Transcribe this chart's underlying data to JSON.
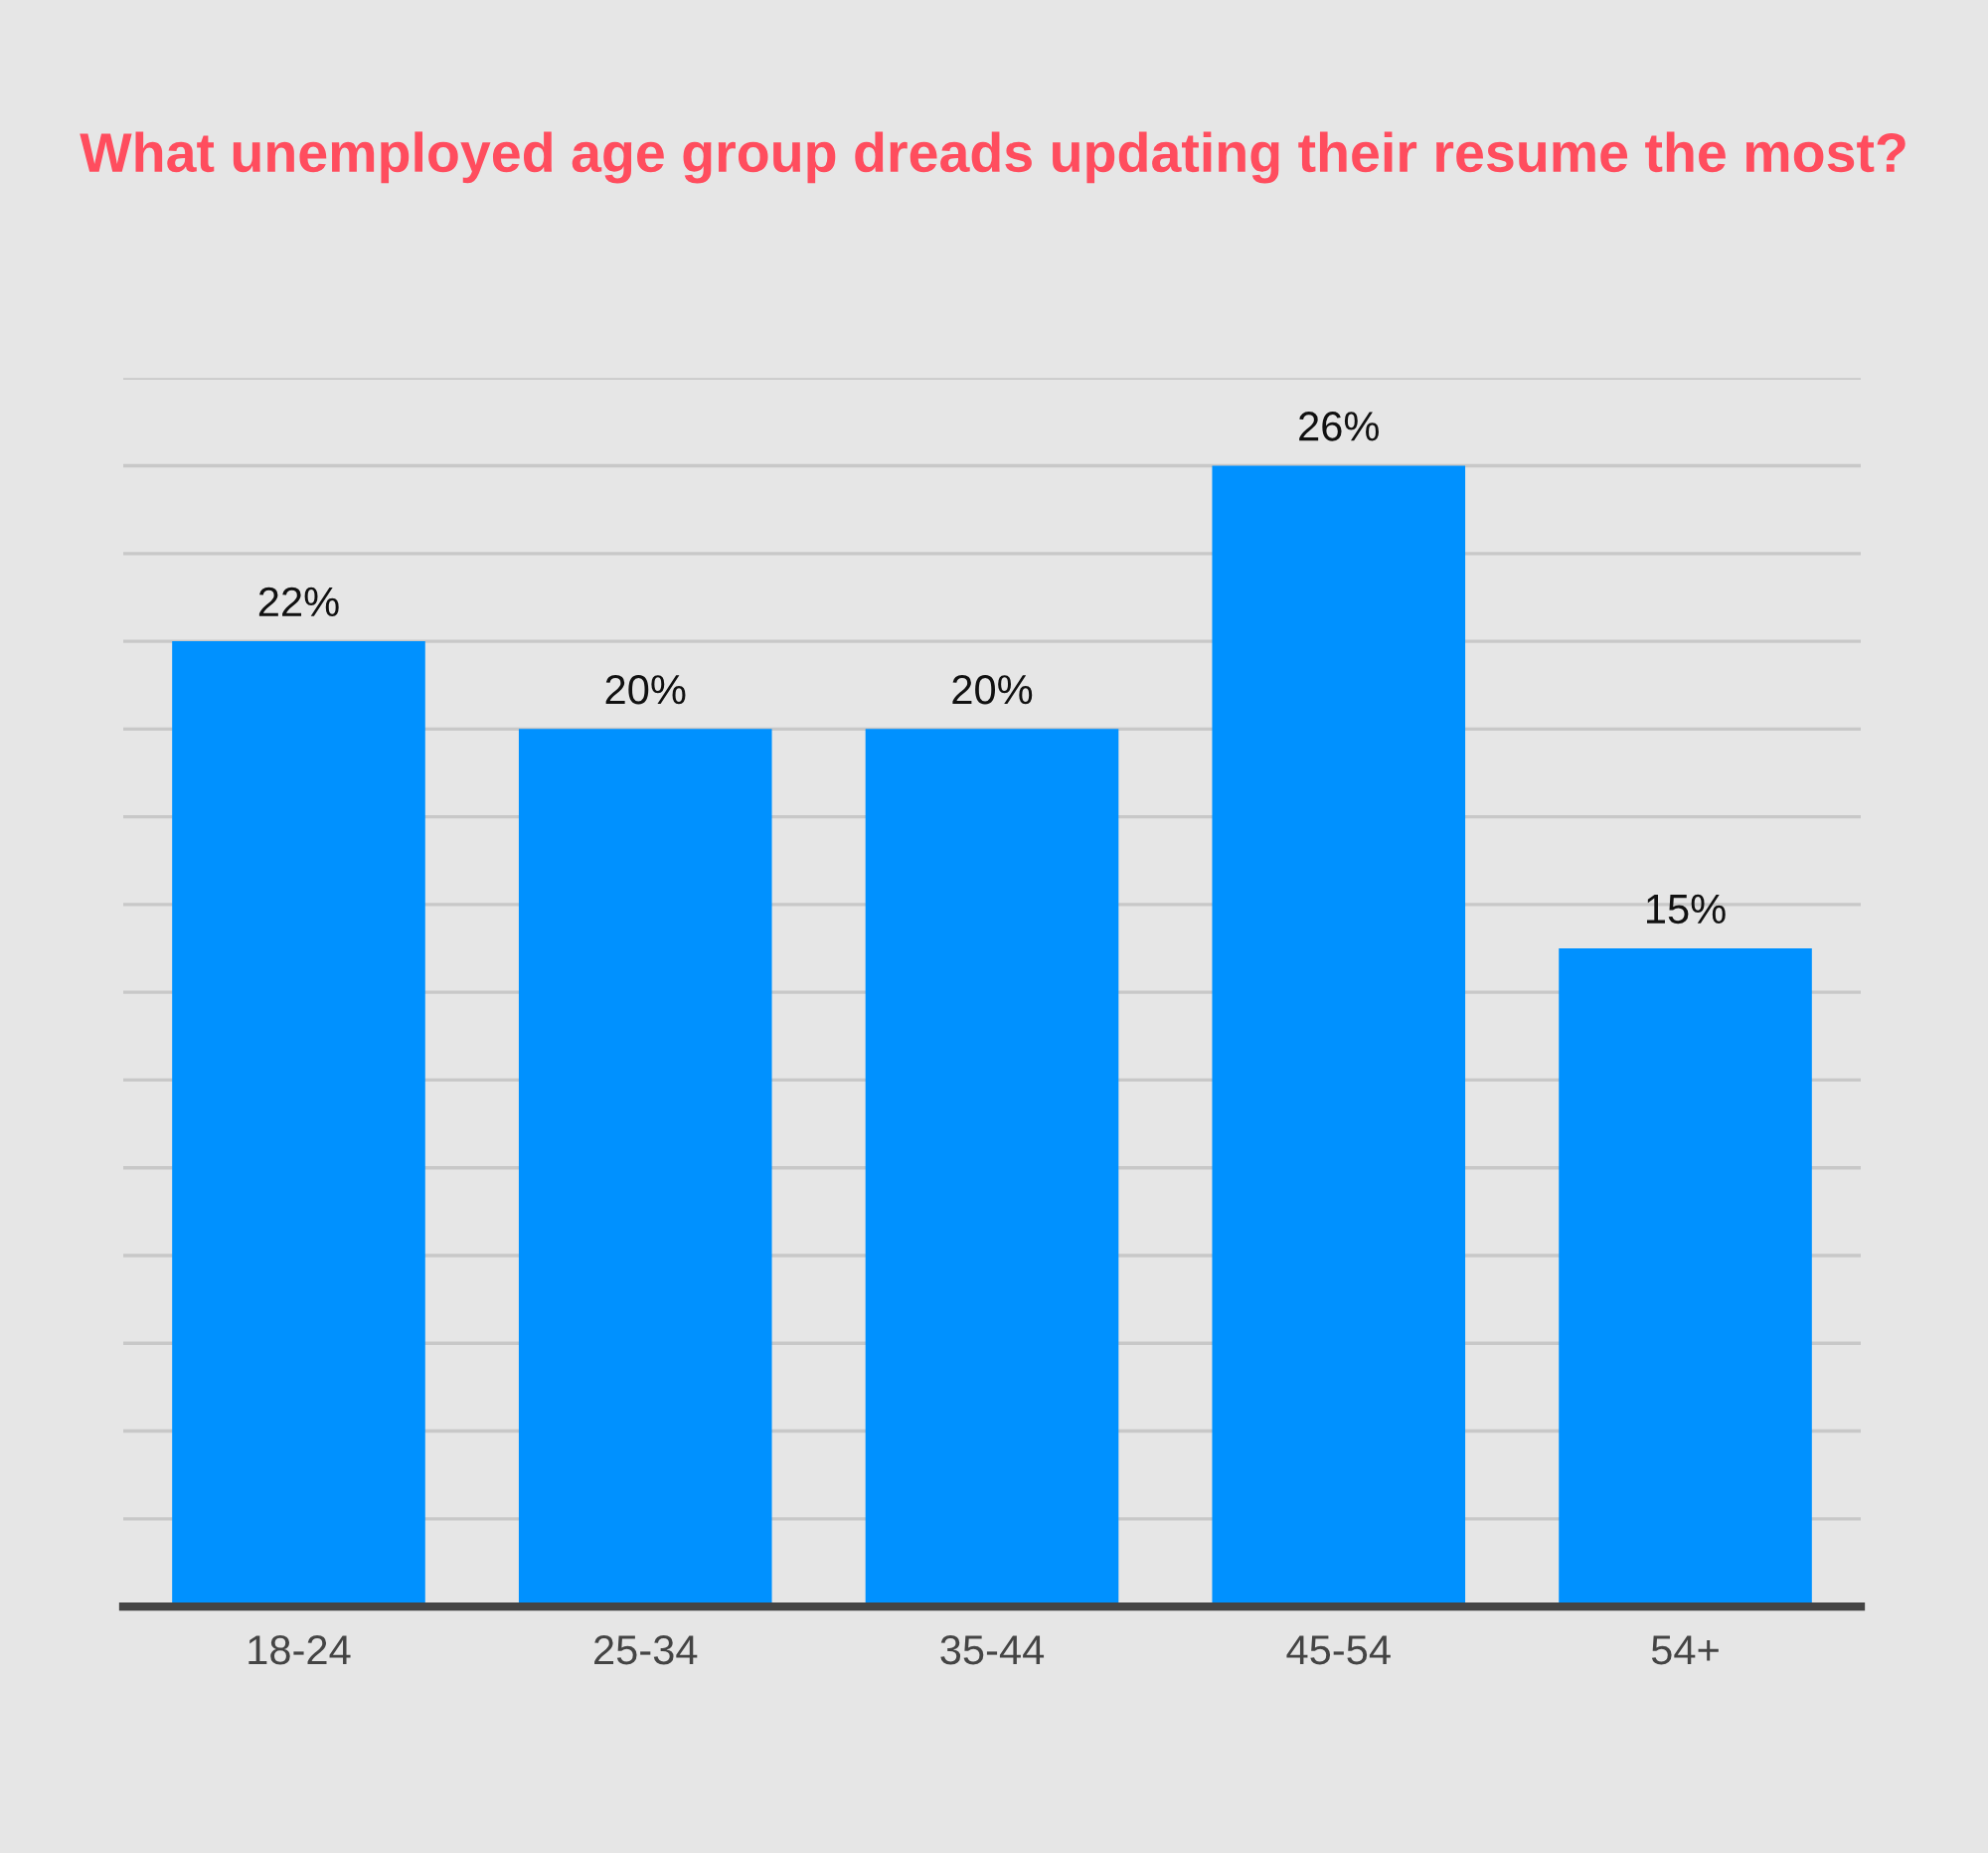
{
  "chart_data": {
    "type": "bar",
    "title": "What unemployed age group dreads updating their resume the most?",
    "categories": [
      "18-24",
      "25-34",
      "35-44",
      "45-54",
      "54+"
    ],
    "values": [
      22,
      20,
      20,
      26,
      15
    ],
    "value_labels": [
      "22%",
      "20%",
      "20%",
      "26%",
      "15%"
    ],
    "color": "#0091ff",
    "ylim": [
      0,
      28
    ],
    "yticks": [
      {
        "value": 0,
        "label": null
      },
      {
        "value": 2,
        "label": null
      },
      {
        "value": 4,
        "label": null
      },
      {
        "value": 6,
        "label": null
      },
      {
        "value": 8,
        "label": null
      },
      {
        "value": 10,
        "label": null
      },
      {
        "value": 12,
        "label": null
      },
      {
        "value": 14,
        "label": null
      },
      {
        "value": 16,
        "label": null
      },
      {
        "value": 18,
        "label": null
      },
      {
        "value": 20,
        "label": null
      },
      {
        "value": 22,
        "label": null
      },
      {
        "value": 24,
        "label": null
      },
      {
        "value": 26,
        "label": null
      },
      {
        "value": 28,
        "label": null
      }
    ],
    "grid": "y",
    "tick_labels": "x",
    "legend": false
  }
}
